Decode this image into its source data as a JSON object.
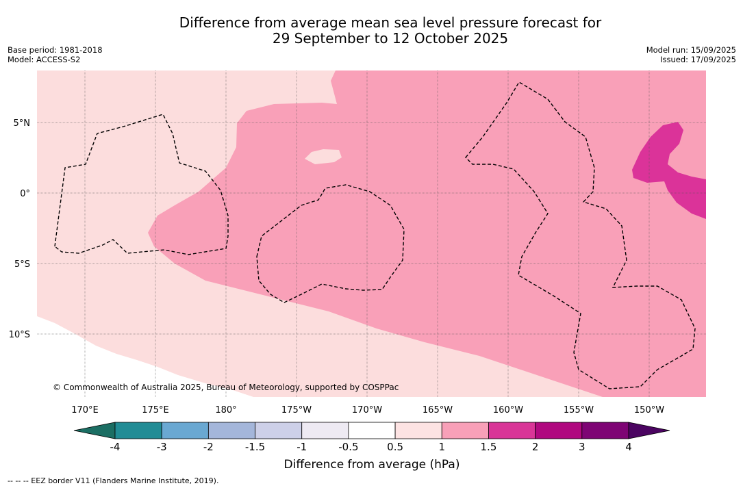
{
  "title": {
    "line1": "Difference from average mean sea level pressure forecast for",
    "line2": "29 September to 12 October 2025"
  },
  "info_left": {
    "base_period": "Base period: 1981-2018",
    "model": "Model: ACCESS-S2"
  },
  "info_right": {
    "model_run": "Model run: 15/09/2025",
    "issued": "Issued: 17/09/2025"
  },
  "map": {
    "lat_labels": [
      "5°N",
      "0°",
      "5°S",
      "10°S"
    ],
    "lon_labels": [
      "170°E",
      "175°E",
      "180°",
      "175°W",
      "170°W",
      "165°W",
      "160°W",
      "155°W",
      "150°W"
    ],
    "copyright": "© Commonwealth of Australia 2025, Bureau of Meteorology, supported by COSPPac",
    "fill_colors": {
      "lt_0_5": "#ffffff",
      "0_5_to_1": "#fcdddd",
      "1_to_1_5": "#f9a0b8",
      "1_5_to_2": "#db3399"
    }
  },
  "colorbar": {
    "bounds": [
      "-4",
      "-3",
      "-2",
      "-1.5",
      "-1",
      "-0.5",
      "0.5",
      "1",
      "1.5",
      "2",
      "3",
      "4"
    ],
    "colors": [
      "#1b6e63",
      "#218c95",
      "#6aa8d2",
      "#a4b6da",
      "#cdd0e8",
      "#eeeaf3",
      "#ffffff",
      "#fde3e3",
      "#f8a0b8",
      "#d93597",
      "#b0087f",
      "#7e0474",
      "#4b0461"
    ],
    "title": "Difference from average (hPa)"
  },
  "footnote": "--  --  -- EEZ border V11 (Flanders Marine Institute, 2019)."
}
